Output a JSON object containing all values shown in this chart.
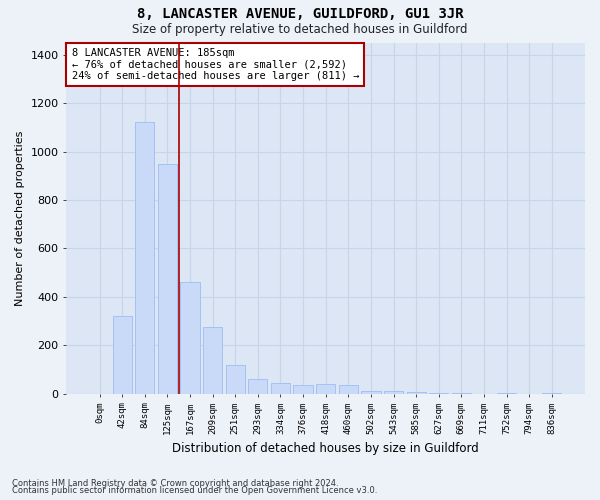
{
  "title": "8, LANCASTER AVENUE, GUILDFORD, GU1 3JR",
  "subtitle": "Size of property relative to detached houses in Guildford",
  "xlabel": "Distribution of detached houses by size in Guildford",
  "ylabel": "Number of detached properties",
  "footnote1": "Contains HM Land Registry data © Crown copyright and database right 2024.",
  "footnote2": "Contains public sector information licensed under the Open Government Licence v3.0.",
  "bar_color": "#c9daf8",
  "bar_edge_color": "#a4c2f4",
  "grid_color": "#c8d4e8",
  "bg_color": "#dce6f5",
  "fig_color": "#edf1f8",
  "annotation_box_color": "#aa0000",
  "vline_color": "#aa0000",
  "categories": [
    "0sqm",
    "42sqm",
    "84sqm",
    "125sqm",
    "167sqm",
    "209sqm",
    "251sqm",
    "293sqm",
    "334sqm",
    "376sqm",
    "418sqm",
    "460sqm",
    "502sqm",
    "543sqm",
    "585sqm",
    "627sqm",
    "669sqm",
    "711sqm",
    "752sqm",
    "794sqm",
    "836sqm"
  ],
  "values": [
    0,
    320,
    1120,
    950,
    460,
    275,
    120,
    60,
    45,
    35,
    40,
    38,
    12,
    10,
    8,
    5,
    4,
    0,
    4,
    0,
    2
  ],
  "vline_x": 3.5,
  "annotation_text": "8 LANCASTER AVENUE: 185sqm\n← 76% of detached houses are smaller (2,592)\n24% of semi-detached houses are larger (811) →",
  "ylim": [
    0,
    1450
  ],
  "yticks": [
    0,
    200,
    400,
    600,
    800,
    1000,
    1200,
    1400
  ]
}
